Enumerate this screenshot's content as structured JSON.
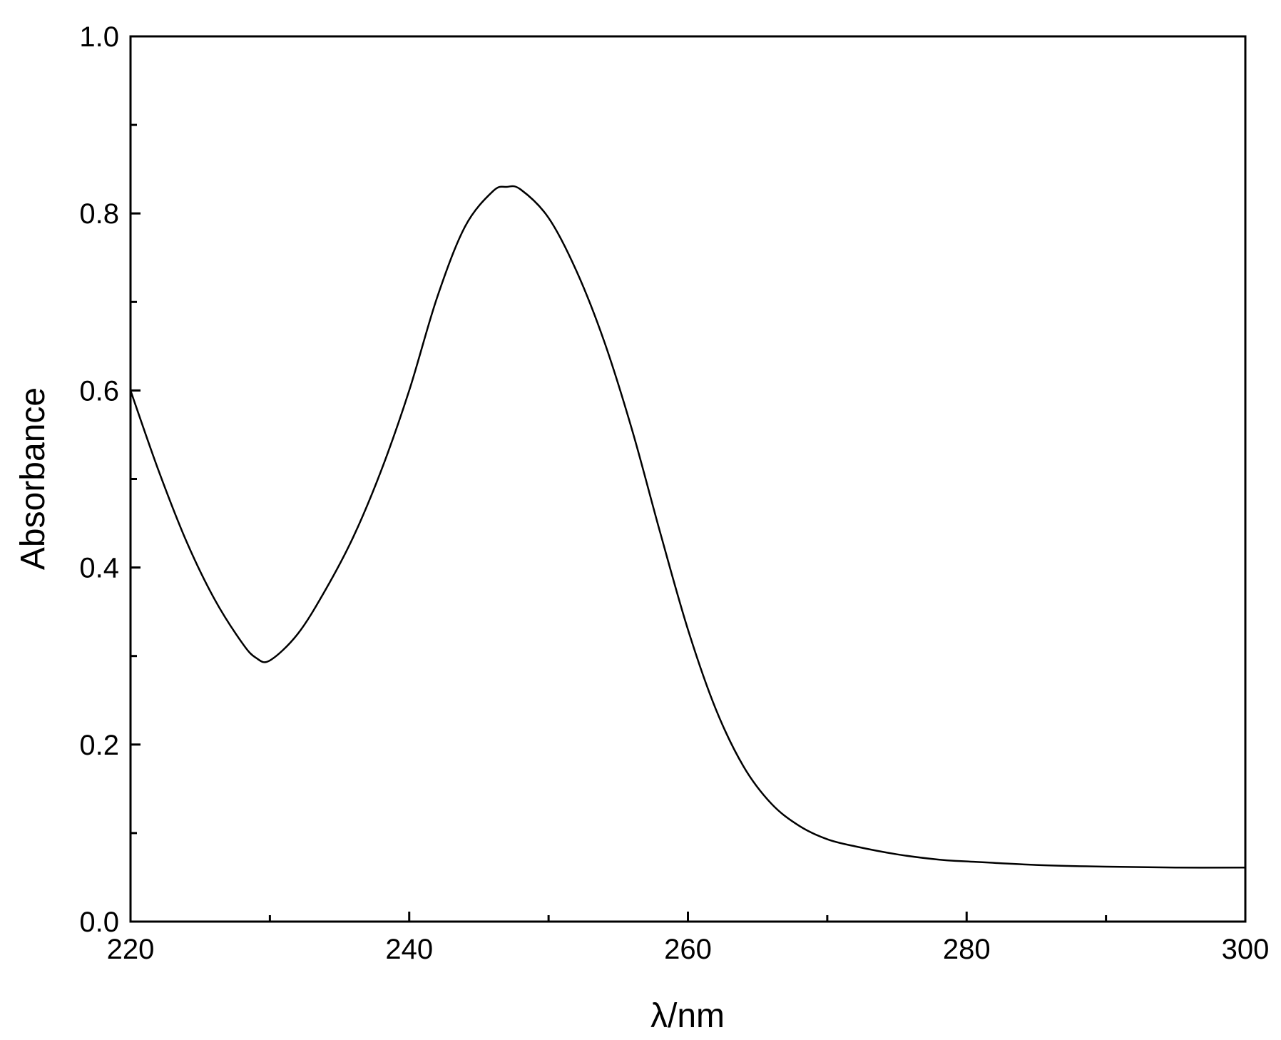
{
  "chart_data": {
    "type": "line",
    "title": "",
    "xlabel": "λ/nm",
    "ylabel": "Absorbance",
    "xlim": [
      220,
      300
    ],
    "ylim": [
      0.0,
      1.0
    ],
    "x_ticks": [
      220,
      240,
      260,
      280,
      300
    ],
    "x_tick_labels": [
      "220",
      "240",
      "260",
      "280",
      "300"
    ],
    "x_minor_ticks": [
      230,
      250,
      270,
      290
    ],
    "y_ticks": [
      0.0,
      0.2,
      0.4,
      0.6,
      0.8,
      1.0
    ],
    "y_tick_labels": [
      "0.0",
      "0.2",
      "0.4",
      "0.6",
      "0.8",
      "1.0"
    ],
    "y_minor_ticks": [
      0.1,
      0.3,
      0.5,
      0.7,
      0.9
    ],
    "grid": false,
    "legend": "none",
    "line_color": "#000000",
    "series": [
      {
        "x": [
          220,
          222,
          224,
          226,
          228,
          229,
          230,
          232,
          234,
          236,
          238,
          240,
          242,
          244,
          246,
          247,
          248,
          250,
          252,
          254,
          256,
          258,
          260,
          262,
          264,
          266,
          268,
          270,
          272,
          275,
          278,
          280,
          285,
          290,
          295,
          300
        ],
        "values": [
          0.6,
          0.51,
          0.43,
          0.365,
          0.315,
          0.298,
          0.295,
          0.325,
          0.375,
          0.435,
          0.51,
          0.6,
          0.705,
          0.785,
          0.825,
          0.83,
          0.827,
          0.795,
          0.735,
          0.655,
          0.555,
          0.44,
          0.33,
          0.24,
          0.175,
          0.133,
          0.108,
          0.093,
          0.085,
          0.076,
          0.07,
          0.068,
          0.064,
          0.062,
          0.061,
          0.061
        ]
      }
    ]
  }
}
